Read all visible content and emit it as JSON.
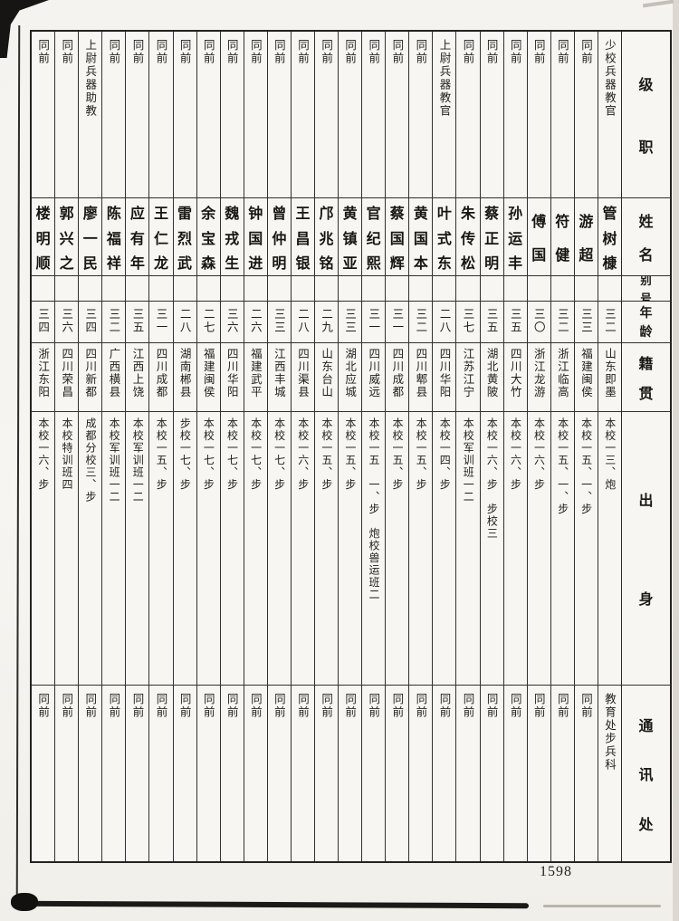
{
  "page": {
    "number": "1598"
  },
  "table": {
    "headers": {
      "rank": "级职",
      "name": "姓名",
      "alias": "别号",
      "age": "年龄",
      "native_place": "籍贯",
      "background": "出身",
      "address": "通讯处"
    },
    "people": [
      {
        "rank": "少校兵器教官",
        "name": "管树槺",
        "alias": "",
        "age": "三二",
        "native_place": "山东即墨",
        "background": "本校一三、炮",
        "address": "教育处步兵科"
      },
      {
        "rank": "同前",
        "name": "游超",
        "alias": "",
        "age": "三三",
        "native_place": "福建闽侯",
        "background": "本校一五、一、步",
        "address": "同前"
      },
      {
        "rank": "同前",
        "name": "符健",
        "alias": "",
        "age": "三二",
        "native_place": "浙江临高",
        "background": "本校一五、一、步",
        "address": "同前"
      },
      {
        "rank": "同前",
        "name": "傅国",
        "alias": "",
        "age": "三〇",
        "native_place": "浙江龙游",
        "background": "本校一六、步",
        "address": "同前"
      },
      {
        "rank": "同前",
        "name": "孙运丰",
        "alias": "",
        "age": "三五",
        "native_place": "四川大竹",
        "background": "本校一六、步",
        "address": "同前"
      },
      {
        "rank": "同前",
        "name": "蔡正明",
        "alias": "",
        "age": "三五",
        "native_place": "湖北黄陂",
        "background": "本校一六、步　步校三",
        "address": "同前"
      },
      {
        "rank": "同前",
        "name": "朱传松",
        "alias": "",
        "age": "三七",
        "native_place": "江苏江宁",
        "background": "本校军训班一二",
        "address": "同前"
      },
      {
        "rank": "上尉兵器教官",
        "name": "叶式东",
        "alias": "",
        "age": "二八",
        "native_place": "四川华阳",
        "background": "本校一四、步",
        "address": "同前"
      },
      {
        "rank": "同前",
        "name": "黄国本",
        "alias": "",
        "age": "三二",
        "native_place": "四川郫县",
        "background": "本校一五、步",
        "address": "同前"
      },
      {
        "rank": "同前",
        "name": "蔡国辉",
        "alias": "",
        "age": "三一",
        "native_place": "四川成都",
        "background": "本校一五、步",
        "address": "同前"
      },
      {
        "rank": "同前",
        "name": "官纪熙",
        "alias": "",
        "age": "三一",
        "native_place": "四川威远",
        "background": "本校一五　一、步　炮校兽运班二",
        "address": "同前"
      },
      {
        "rank": "同前",
        "name": "黄镇亚",
        "alias": "",
        "age": "三三",
        "native_place": "湖北应城",
        "background": "本校一五、步",
        "address": "同前"
      },
      {
        "rank": "同前",
        "name": "邝兆铭",
        "alias": "",
        "age": "二九",
        "native_place": "山东台山",
        "background": "本校一五、步",
        "address": "同前"
      },
      {
        "rank": "同前",
        "name": "王昌银",
        "alias": "",
        "age": "二八",
        "native_place": "四川渠县",
        "background": "本校一六、步",
        "address": "同前"
      },
      {
        "rank": "同前",
        "name": "曾仲明",
        "alias": "",
        "age": "三三",
        "native_place": "江西丰城",
        "background": "本校一七、步",
        "address": "同前"
      },
      {
        "rank": "同前",
        "name": "钟国进",
        "alias": "",
        "age": "二六",
        "native_place": "福建武平",
        "background": "本校一七、步",
        "address": "同前"
      },
      {
        "rank": "同前",
        "name": "魏戎生",
        "alias": "",
        "age": "三六",
        "native_place": "四川华阳",
        "background": "本校一七、步",
        "address": "同前"
      },
      {
        "rank": "同前",
        "name": "余宝森",
        "alias": "",
        "age": "二七",
        "native_place": "福建闽侯",
        "background": "本校一七、步",
        "address": "同前"
      },
      {
        "rank": "同前",
        "name": "雷烈武",
        "alias": "",
        "age": "二八",
        "native_place": "湖南郴县",
        "background": "步校一七、步",
        "address": "同前"
      },
      {
        "rank": "同前",
        "name": "王仁龙",
        "alias": "",
        "age": "三一",
        "native_place": "四川成都",
        "background": "本校一五、步",
        "address": "同前"
      },
      {
        "rank": "同前",
        "name": "应有年",
        "alias": "",
        "age": "三五",
        "native_place": "江西上饶",
        "background": "本校军训班一二",
        "address": "同前"
      },
      {
        "rank": "同前",
        "name": "陈福祥",
        "alias": "",
        "age": "三二",
        "native_place": "广西横县",
        "background": "本校军训班一二",
        "address": "同前"
      },
      {
        "rank": "上尉兵器助教",
        "name": "廖一民",
        "alias": "",
        "age": "三四",
        "native_place": "四川新都",
        "background": "成都分校三、步",
        "address": "同前"
      },
      {
        "rank": "同前",
        "name": "郭兴之",
        "alias": "",
        "age": "三六",
        "native_place": "四川荣昌",
        "background": "本校特训班四",
        "address": "同前"
      },
      {
        "rank": "同前",
        "name": "楼明顺",
        "alias": "",
        "age": "三四",
        "native_place": "浙江东阳",
        "background": "本校一六、步",
        "address": "同前"
      }
    ]
  }
}
